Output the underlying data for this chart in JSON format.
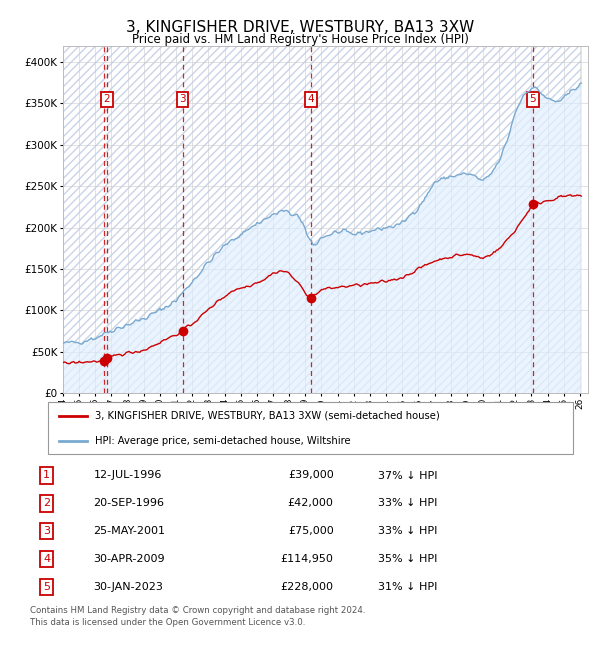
{
  "title": "3, KINGFISHER DRIVE, WESTBURY, BA13 3XW",
  "subtitle": "Price paid vs. HM Land Registry's House Price Index (HPI)",
  "xlim": [
    1994.0,
    2026.5
  ],
  "ylim": [
    0,
    420000
  ],
  "yticks": [
    0,
    50000,
    100000,
    150000,
    200000,
    250000,
    300000,
    350000,
    400000
  ],
  "ytick_labels": [
    "£0",
    "£50K",
    "£100K",
    "£150K",
    "£200K",
    "£250K",
    "£300K",
    "£350K",
    "£400K"
  ],
  "sales": [
    {
      "num": 1,
      "date_year": 1996.53,
      "price": 39000,
      "label": "1",
      "show_label": false
    },
    {
      "num": 2,
      "date_year": 1996.72,
      "price": 42000,
      "label": "2",
      "show_label": true
    },
    {
      "num": 3,
      "date_year": 2001.4,
      "price": 75000,
      "label": "3",
      "show_label": true
    },
    {
      "num": 4,
      "date_year": 2009.33,
      "price": 114950,
      "label": "4",
      "show_label": true
    },
    {
      "num": 5,
      "date_year": 2023.08,
      "price": 228000,
      "label": "5",
      "show_label": true
    }
  ],
  "hpi_anchors_years": [
    1994.0,
    1995.0,
    1996.0,
    1997.0,
    1998.0,
    1999.0,
    2000.0,
    2001.0,
    2002.0,
    2003.0,
    2004.0,
    2005.0,
    2006.0,
    2007.0,
    2007.5,
    2008.5,
    2009.5,
    2010.0,
    2011.0,
    2012.0,
    2013.0,
    2014.0,
    2014.5,
    2015.0,
    2016.0,
    2016.5,
    2017.0,
    2018.0,
    2019.0,
    2019.5,
    2020.0,
    2020.5,
    2021.0,
    2021.5,
    2022.0,
    2022.5,
    2023.0,
    2023.5,
    2024.0,
    2024.5,
    2025.0,
    2025.5,
    2026.0
  ],
  "hpi_anchors_vals": [
    60000,
    62000,
    67000,
    76000,
    83000,
    90000,
    100000,
    112000,
    135000,
    158000,
    178000,
    192000,
    205000,
    215000,
    220000,
    215000,
    178000,
    188000,
    195000,
    192000,
    196000,
    200000,
    202000,
    205000,
    225000,
    238000,
    255000,
    262000,
    265000,
    262000,
    255000,
    265000,
    280000,
    305000,
    340000,
    360000,
    370000,
    365000,
    355000,
    352000,
    355000,
    365000,
    375000
  ],
  "red_anchors_years": [
    1994.0,
    1995.5,
    1996.53,
    1996.72,
    1997.5,
    1999.0,
    2001.4,
    2002.5,
    2003.5,
    2004.5,
    2005.5,
    2006.5,
    2007.0,
    2007.5,
    2008.0,
    2009.33,
    2010.0,
    2011.0,
    2012.0,
    2013.0,
    2014.0,
    2015.0,
    2016.0,
    2017.0,
    2018.0,
    2019.0,
    2020.0,
    2021.0,
    2022.0,
    2023.08,
    2024.0,
    2025.0
  ],
  "red_anchors_vals": [
    36000,
    38000,
    39000,
    42000,
    47000,
    52000,
    75000,
    92000,
    110000,
    124000,
    130000,
    138000,
    145000,
    148000,
    145000,
    114950,
    125000,
    128000,
    130000,
    132000,
    135000,
    140000,
    150000,
    160000,
    165000,
    168000,
    163000,
    174000,
    197000,
    228000,
    233000,
    238000
  ],
  "sale_color": "#cc0000",
  "hpi_color": "#7aaad0",
  "hpi_fill_color": "#ddeeff",
  "vline_color": "#cc0000",
  "grid_color": "#cccccc",
  "bg_color": "#ffffff",
  "legend_line1": "3, KINGFISHER DRIVE, WESTBURY, BA13 3XW (semi-detached house)",
  "legend_line2": "HPI: Average price, semi-detached house, Wiltshire",
  "table_entries": [
    {
      "num": "1",
      "date": "12-JUL-1996",
      "price": "£39,000",
      "pct": "37% ↓ HPI"
    },
    {
      "num": "2",
      "date": "20-SEP-1996",
      "price": "£42,000",
      "pct": "33% ↓ HPI"
    },
    {
      "num": "3",
      "date": "25-MAY-2001",
      "price": "£75,000",
      "pct": "33% ↓ HPI"
    },
    {
      "num": "4",
      "date": "30-APR-2009",
      "price": "£114,950",
      "pct": "35% ↓ HPI"
    },
    {
      "num": "5",
      "date": "30-JAN-2023",
      "price": "£228,000",
      "pct": "31% ↓ HPI"
    }
  ],
  "footer": "Contains HM Land Registry data © Crown copyright and database right 2024.\nThis data is licensed under the Open Government Licence v3.0."
}
